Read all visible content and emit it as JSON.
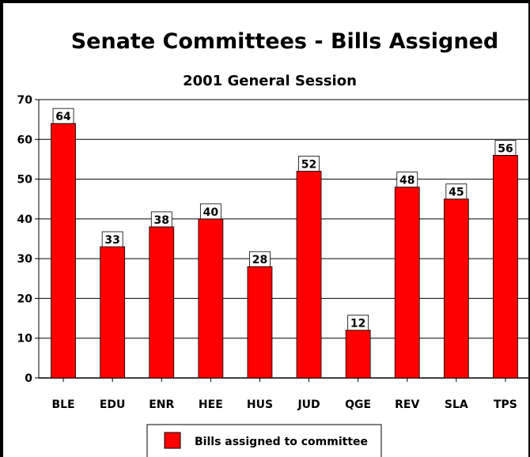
{
  "chart_data": {
    "type": "bar",
    "title": "Senate Committees - Bills Assigned",
    "subtitle": "2001 General Session",
    "categories": [
      "BLE",
      "EDU",
      "ENR",
      "HEE",
      "HUS",
      "JUD",
      "QGE",
      "REV",
      "SLA",
      "TPS"
    ],
    "series": [
      {
        "name": "Bills assigned to committee",
        "values": [
          64,
          33,
          38,
          40,
          28,
          52,
          12,
          48,
          45,
          56
        ]
      }
    ],
    "ylim": [
      0,
      70
    ],
    "yticks": [
      "0",
      "10",
      "20",
      "30",
      "40",
      "50",
      "60",
      "70"
    ],
    "grid": true,
    "legend": "bottom",
    "bar_color": "#ff0000"
  }
}
